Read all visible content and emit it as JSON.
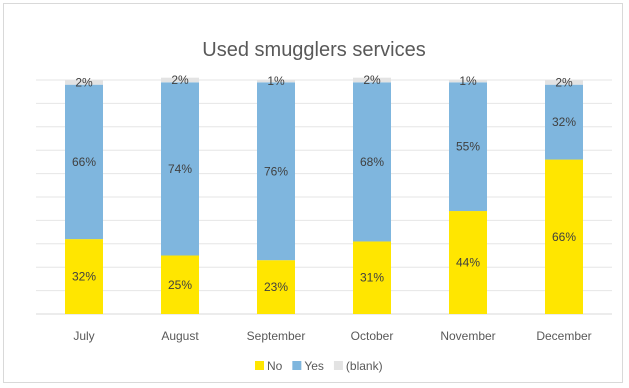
{
  "chart_data": {
    "type": "bar",
    "stacked": true,
    "percent_stacked": true,
    "title": "Used smugglers services",
    "categories": [
      "July",
      "August",
      "September",
      "October",
      "November",
      "December"
    ],
    "series": [
      {
        "name": "No",
        "values": [
          32,
          25,
          23,
          31,
          44,
          66
        ],
        "labels": [
          "32%",
          "25%",
          "23%",
          "31%",
          "44%",
          "66%"
        ],
        "color": "#FFE600"
      },
      {
        "name": "Yes",
        "values": [
          66,
          74,
          76,
          68,
          55,
          32
        ],
        "labels": [
          "66%",
          "74%",
          "76%",
          "68%",
          "55%",
          "32%"
        ],
        "color": "#7FB6DE"
      },
      {
        "name": "(blank)",
        "values": [
          2,
          2,
          1,
          2,
          1,
          2
        ],
        "labels": [
          "2%",
          "2%",
          "1%",
          "2%",
          "1%",
          "2%"
        ],
        "color": "#E3E3E3"
      }
    ],
    "ylim": [
      0,
      100
    ],
    "grid": true,
    "legend_position": "bottom"
  }
}
